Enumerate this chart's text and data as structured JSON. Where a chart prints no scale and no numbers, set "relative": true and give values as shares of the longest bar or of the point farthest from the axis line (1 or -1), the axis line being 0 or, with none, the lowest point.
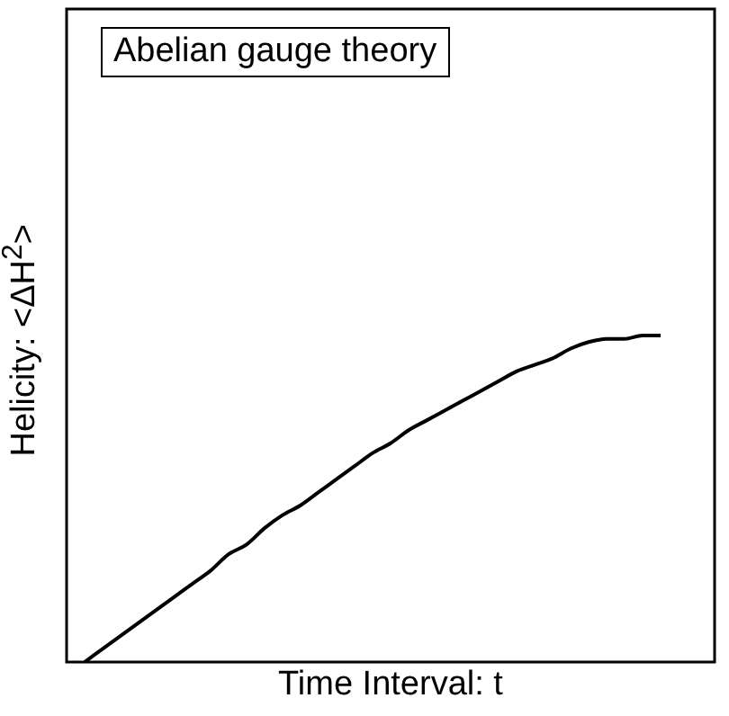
{
  "chart_data": {
    "type": "line",
    "relative": true,
    "xlabel": "Time Interval:  t",
    "ylabel": "Helicity:  <ΔH$^{2}$>",
    "annotations": [
      "Abelian gauge theory"
    ],
    "marker": "none",
    "categories": [
      null,
      null,
      null,
      null,
      null,
      null,
      null,
      null,
      null,
      null,
      null,
      null,
      null,
      null,
      null,
      null,
      null,
      null,
      null,
      null,
      null,
      null,
      null,
      null,
      null,
      null,
      null,
      null,
      null,
      null,
      null,
      null,
      null,
      null,
      null,
      null,
      null
    ],
    "series": [
      {
        "color": "#000000",
        "values": [
          null,
          0,
          0.04,
          0.08,
          0.12,
          0.16,
          0.2,
          0.24,
          0.28,
          0.33,
          0.36,
          0.41,
          0.45,
          0.48,
          0.52,
          0.56,
          0.6,
          0.64,
          0.67,
          0.71,
          0.74,
          0.77,
          0.8,
          0.83,
          0.86,
          0.89,
          0.91,
          0.93,
          0.96,
          0.98,
          0.99,
          0.99,
          1,
          1,
          null,
          null,
          null
        ]
      }
    ]
  }
}
